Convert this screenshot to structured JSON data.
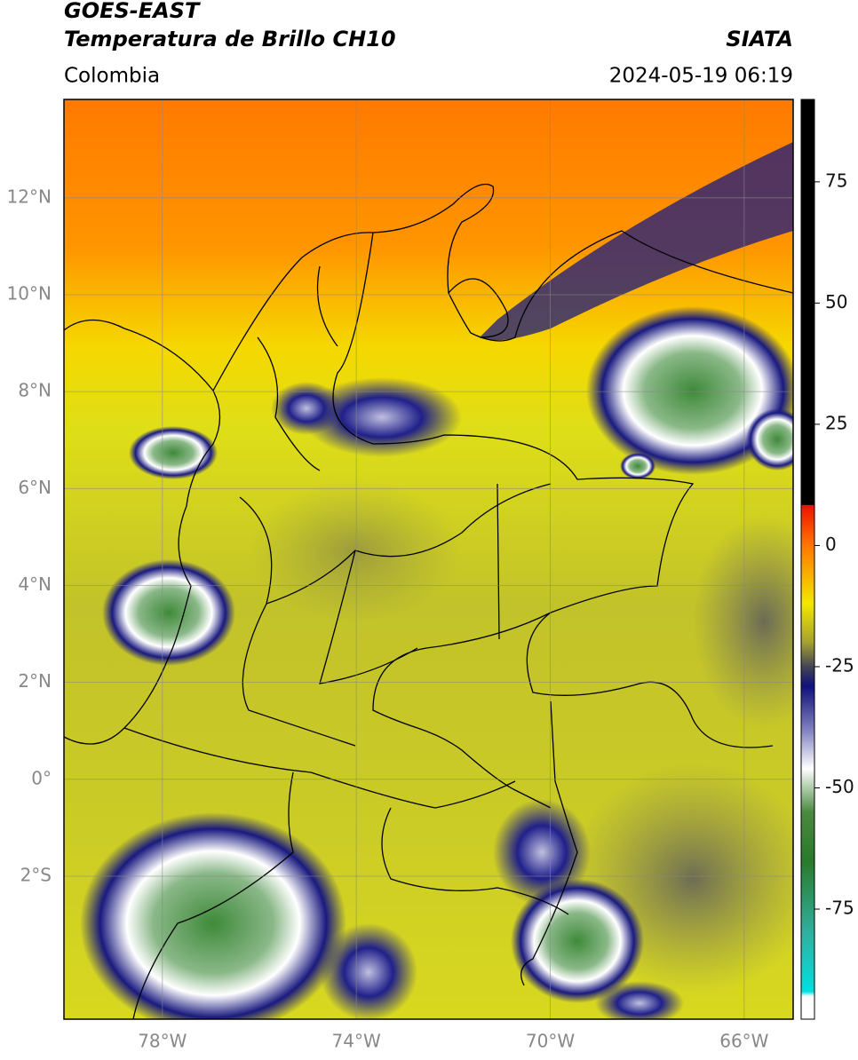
{
  "header": {
    "title": "GOES-EAST",
    "subtitle": "Temperatura de Brillo CH10",
    "region": "Colombia",
    "source": "SIATA",
    "datetime": "2024-05-19 06:19"
  },
  "map": {
    "lat_range": [
      -4.95,
      14.03
    ],
    "lon_range": [
      -80.03,
      -64.99
    ],
    "lat_ticks": [
      {
        "value": 12,
        "label": "12°N"
      },
      {
        "value": 10,
        "label": "10°N"
      },
      {
        "value": 8,
        "label": "8°N"
      },
      {
        "value": 6,
        "label": "6°N"
      },
      {
        "value": 4,
        "label": "4°N"
      },
      {
        "value": 2,
        "label": "2°N"
      },
      {
        "value": 0,
        "label": "0°"
      },
      {
        "value": -2,
        "label": "2°S"
      }
    ],
    "lon_ticks": [
      {
        "value": -78,
        "label": "78°W"
      },
      {
        "value": -74,
        "label": "74°W"
      },
      {
        "value": -70,
        "label": "70°W"
      },
      {
        "value": -66,
        "label": "66°W"
      }
    ],
    "grid": true
  },
  "colorbar": {
    "range": [
      -97.7,
      92
    ],
    "ticks": [
      75,
      50,
      25,
      0,
      -25,
      -50,
      -75
    ],
    "stops": [
      {
        "value": 92,
        "color": "#000000"
      },
      {
        "value": 8.4,
        "color": "#000000"
      },
      {
        "value": 8.3,
        "color": "#ee1100"
      },
      {
        "value": 0,
        "color": "#ff7700"
      },
      {
        "value": -12,
        "color": "#f2e800"
      },
      {
        "value": -20,
        "color": "#a5a030"
      },
      {
        "value": -25,
        "color": "#444455"
      },
      {
        "value": -29,
        "color": "#10107a"
      },
      {
        "value": -38,
        "color": "#8080c0"
      },
      {
        "value": -46,
        "color": "#ffffff"
      },
      {
        "value": -55,
        "color": "#4a8a40"
      },
      {
        "value": -65,
        "color": "#2a7a2a"
      },
      {
        "value": -80,
        "color": "#30b0a0"
      },
      {
        "value": -92,
        "color": "#00e0e0"
      },
      {
        "value": -93,
        "color": "#ffffff"
      },
      {
        "value": -97.7,
        "color": "#ffffff"
      }
    ]
  }
}
